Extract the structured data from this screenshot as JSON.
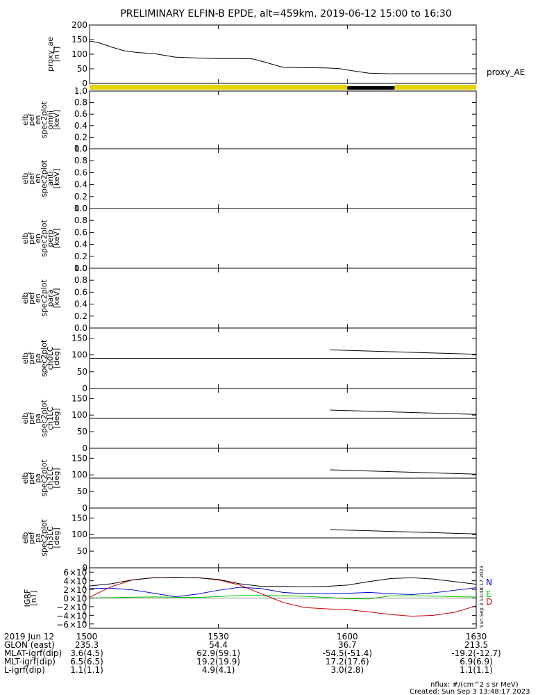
{
  "title": "PRELIMINARY ELFIN-B EPDE, alt=459km, 2019-06-12 15:00 to 16:30",
  "colors": {
    "bar": "#e6d400",
    "bar_dark": "#000000",
    "bx": "#0000cc",
    "by": "#00cc00",
    "bz": "#cc0000",
    "btot": "#000000"
  },
  "ephemeris": {
    "rows": [
      {
        "label": "2019 Jun 12",
        "values": [
          "1500",
          "1530",
          "1600",
          "1630"
        ]
      },
      {
        "label": "GLON (east)",
        "values": [
          "235.3",
          "54.4",
          "36.7",
          "213.5"
        ]
      },
      {
        "label": "MLAT-igrf(dip)",
        "values": [
          "3.6(4.5)",
          "62.9(59.1)",
          "-54.5(-51.4)",
          "-19.2(-12.7)"
        ]
      },
      {
        "label": "MLT-igrf(dip)",
        "values": [
          "6.5(6.5)",
          "19.2(19.9)",
          "17.2(17.6)",
          "6.9(6.9)"
        ]
      },
      {
        "label": "L-igrf(dip)",
        "values": [
          "1.1(1.1)",
          "4.9(4.1)",
          "3.0(2.8)",
          "1.1(1.1)"
        ]
      }
    ]
  },
  "footer": {
    "units": "nflux: #/(cm^2 s sr MeV)",
    "created": "Created: Sun Sep  3 13:48:17 2023",
    "side_stamp": "Sun Sep  3 13:48:17 2023"
  },
  "chart_data": [
    {
      "type": "line",
      "id": "proxy_ae",
      "ylabel": [
        "proxy_ae",
        "[nT]"
      ],
      "yticks": [
        "200",
        "150",
        "100",
        "50",
        "0"
      ],
      "ylim": [
        0,
        200
      ],
      "legend": "proxy_AE",
      "x_minutes": [
        0,
        2,
        5,
        8,
        11,
        15,
        20,
        25,
        30,
        35,
        38,
        41,
        45,
        50,
        55,
        58,
        60,
        65,
        70,
        75,
        80,
        85,
        90
      ],
      "values": [
        145,
        140,
        125,
        112,
        106,
        102,
        90,
        87,
        85,
        85,
        84,
        72,
        55,
        54,
        53,
        51,
        46,
        35,
        33,
        33,
        33,
        33,
        33
      ]
    },
    {
      "type": "bar",
      "id": "status_bar",
      "segments": [
        {
          "start_min": 0,
          "end_min": 60,
          "state": "yellow"
        },
        {
          "start_min": 60,
          "end_min": 71,
          "state": "black"
        },
        {
          "start_min": 71,
          "end_min": 90,
          "state": "yellow"
        }
      ]
    },
    {
      "type": "heatmap",
      "id": "en_spec_omni",
      "ylabel": [
        "elb",
        "pef",
        "en",
        "spec2plot",
        "omni",
        "[keV]"
      ],
      "yticks": [
        "1.0",
        "0.8",
        "0.6",
        "0.4",
        "0.2",
        "0.0"
      ],
      "ylim": [
        0,
        1
      ]
    },
    {
      "type": "heatmap",
      "id": "en_spec_anti",
      "ylabel": [
        "elb",
        "pef",
        "en",
        "spec2plot",
        "anti",
        "[keV]"
      ],
      "yticks": [
        "1.0",
        "0.8",
        "0.6",
        "0.4",
        "0.2",
        "0.0"
      ],
      "ylim": [
        0,
        1
      ]
    },
    {
      "type": "heatmap",
      "id": "en_spec_perp",
      "ylabel": [
        "elb",
        "pef",
        "en",
        "spec2plot",
        "perp",
        "[keV]"
      ],
      "yticks": [
        "1.0",
        "0.8",
        "0.6",
        "0.4",
        "0.2",
        "0.0"
      ],
      "ylim": [
        0,
        1
      ]
    },
    {
      "type": "heatmap",
      "id": "en_spec_para",
      "ylabel": [
        "elb",
        "pef",
        "en",
        "spec2plot",
        "para",
        "[keV]"
      ],
      "yticks": [
        "1.0",
        "0.8",
        "0.6",
        "0.4",
        "0.2",
        "0.0"
      ],
      "ylim": [
        0,
        1
      ]
    },
    {
      "type": "line",
      "id": "pa_ch0",
      "ylabel": [
        "elb",
        "pef",
        "pa",
        "spec2plot",
        "ch0LC",
        "[deg]"
      ],
      "yticks": [
        "150",
        "100",
        "50",
        "0"
      ],
      "ylim": [
        0,
        180
      ],
      "ref_line": 90,
      "x_minutes": [
        56,
        90
      ],
      "values": [
        115,
        102
      ]
    },
    {
      "type": "line",
      "id": "pa_ch1",
      "ylabel": [
        "elb",
        "pef",
        "pa",
        "spec2plot",
        "ch1LC",
        "[deg]"
      ],
      "yticks": [
        "150",
        "100",
        "50",
        "0"
      ],
      "ylim": [
        0,
        180
      ],
      "ref_line": 90,
      "x_minutes": [
        56,
        90
      ],
      "values": [
        115,
        102
      ]
    },
    {
      "type": "line",
      "id": "pa_ch2",
      "ylabel": [
        "elb",
        "pef",
        "pa",
        "spec2plot",
        "ch2LC",
        "[deg]"
      ],
      "yticks": [
        "150",
        "100",
        "50",
        "0"
      ],
      "ylim": [
        0,
        180
      ],
      "ref_line": 90,
      "x_minutes": [
        56,
        90
      ],
      "values": [
        115,
        102
      ]
    },
    {
      "type": "line",
      "id": "pa_ch3",
      "ylabel": [
        "elb",
        "pef",
        "pa",
        "spec2plot",
        "ch3LC",
        "[deg]"
      ],
      "yticks": [
        "150",
        "100",
        "50",
        "0"
      ],
      "ylim": [
        0,
        180
      ],
      "ref_line": 90,
      "x_minutes": [
        56,
        90
      ],
      "values": [
        115,
        102
      ]
    },
    {
      "type": "line",
      "id": "igrf",
      "ylabel": [
        "IGRF",
        "[nT]"
      ],
      "ytick_mantissas": [
        "6",
        "4",
        "2",
        "0",
        "−2",
        "−4",
        "−6"
      ],
      "ytick_values": [
        60000,
        40000,
        20000,
        0,
        -20000,
        -40000,
        -60000
      ],
      "ytick_exp": "4",
      "ylim": [
        -70000,
        70000
      ],
      "legend": [
        "N",
        "E",
        "D"
      ],
      "x_minutes": [
        0,
        5,
        10,
        15,
        20,
        25,
        30,
        35,
        40,
        45,
        50,
        55,
        60,
        65,
        70,
        75,
        80,
        85,
        90
      ],
      "series": [
        {
          "name": "N",
          "values": [
            22000,
            23000,
            19000,
            11000,
            3000,
            9000,
            18000,
            25000,
            22000,
            13000,
            10000,
            10000,
            11000,
            13000,
            10000,
            8000,
            12000,
            18000,
            24000
          ]
        },
        {
          "name": "E",
          "values": [
            200,
            800,
            2000,
            2600,
            1800,
            1500,
            3500,
            6000,
            6200,
            5500,
            4000,
            1500,
            -1500,
            -2000,
            5000,
            5200,
            4500,
            3200,
            2500
          ]
        },
        {
          "name": "D",
          "values": [
            2000,
            26000,
            42000,
            47000,
            48000,
            47000,
            42000,
            30000,
            10000,
            -10000,
            -22000,
            -25000,
            -27000,
            -32000,
            -38000,
            -42000,
            -40000,
            -33000,
            -18000
          ]
        },
        {
          "name": "",
          "values": [
            28000,
            33000,
            42000,
            47000,
            48000,
            47000,
            43000,
            33000,
            27000,
            27000,
            26000,
            27000,
            30000,
            38000,
            45000,
            47000,
            44000,
            38000,
            32000
          ]
        }
      ]
    }
  ]
}
